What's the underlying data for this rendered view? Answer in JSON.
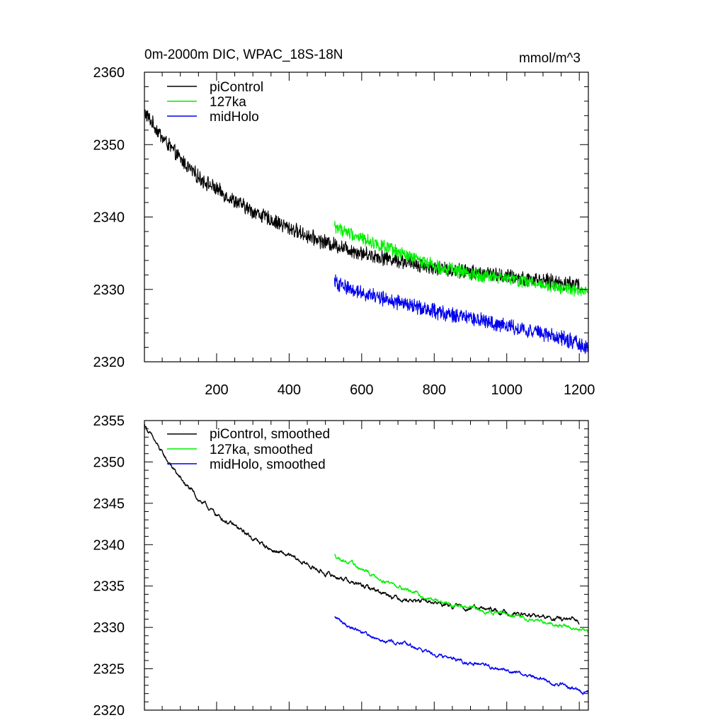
{
  "figure": {
    "title": "0m-2000m DIC, WPAC_18S-18N",
    "units": "mmol/m^3"
  },
  "chart_data": [
    {
      "type": "line",
      "title": "0m-2000m DIC, WPAC_18S-18N",
      "units_label": "mmol/m^3",
      "xlabel": "",
      "ylabel": "",
      "xlim": [
        1,
        1225
      ],
      "ylim": [
        2320,
        2360
      ],
      "x_ticks": [
        200,
        400,
        600,
        800,
        1000,
        1200
      ],
      "x_tick_labels": [
        "200",
        "400",
        "600",
        "800",
        "1000",
        "1200"
      ],
      "y_ticks": [
        2320,
        2330,
        2340,
        2350,
        2360
      ],
      "y_tick_labels": [
        "2320",
        "2330",
        "2340",
        "2350",
        "2360"
      ],
      "legend": "top-left",
      "grid": false,
      "series": [
        {
          "name": "piControl",
          "color": "#000000",
          "x": [
            1,
            50,
            100,
            150,
            200,
            250,
            300,
            350,
            400,
            450,
            500,
            550,
            600,
            650,
            700,
            750,
            800,
            850,
            900,
            950,
            1000,
            1050,
            1100,
            1150,
            1200
          ],
          "values": [
            2354.5,
            2351.0,
            2348.0,
            2345.5,
            2343.8,
            2342.2,
            2340.8,
            2339.6,
            2338.5,
            2337.4,
            2336.5,
            2335.8,
            2335.0,
            2334.5,
            2334.0,
            2333.5,
            2333.0,
            2332.7,
            2332.4,
            2332.1,
            2331.8,
            2331.5,
            2331.2,
            2330.9,
            2330.7
          ],
          "noise": 0.9
        },
        {
          "name": "127ka",
          "color": "#00ee00",
          "x": [
            525,
            575,
            625,
            675,
            725,
            775,
            825,
            875,
            925,
            975,
            1025,
            1075,
            1125,
            1175,
            1225
          ],
          "values": [
            2338.7,
            2337.6,
            2336.6,
            2335.6,
            2334.6,
            2333.8,
            2333.0,
            2332.4,
            2332.0,
            2331.7,
            2331.3,
            2330.9,
            2330.5,
            2330.0,
            2329.5
          ],
          "noise": 0.8
        },
        {
          "name": "midHolo",
          "color": "#0000ee",
          "x": [
            525,
            575,
            625,
            675,
            725,
            775,
            825,
            875,
            925,
            975,
            1025,
            1075,
            1125,
            1175,
            1225
          ],
          "values": [
            2331.0,
            2330.0,
            2329.2,
            2328.5,
            2327.9,
            2327.3,
            2326.7,
            2326.2,
            2325.7,
            2325.2,
            2324.7,
            2324.2,
            2323.6,
            2322.9,
            2322.0
          ],
          "noise": 0.9
        }
      ]
    },
    {
      "type": "line",
      "title": "",
      "xlabel": "",
      "ylabel": "",
      "xlim": [
        1,
        1225
      ],
      "ylim": [
        2320,
        2355
      ],
      "x_ticks": [
        200,
        400,
        600,
        800,
        1000,
        1200
      ],
      "x_tick_labels": [],
      "y_ticks": [
        2320,
        2325,
        2330,
        2335,
        2340,
        2345,
        2350,
        2355
      ],
      "y_tick_labels": [
        "2320",
        "2325",
        "2330",
        "2335",
        "2340",
        "2345",
        "2350",
        "2355"
      ],
      "legend": "top-left",
      "grid": false,
      "series": [
        {
          "name": "piControl, smoothed",
          "color": "#000000",
          "x": [
            1,
            50,
            100,
            150,
            200,
            250,
            300,
            350,
            400,
            450,
            500,
            550,
            600,
            650,
            700,
            750,
            800,
            850,
            900,
            950,
            1000,
            1050,
            1100,
            1150,
            1200
          ],
          "values": [
            2354.5,
            2351.0,
            2348.0,
            2345.5,
            2343.6,
            2342.2,
            2340.8,
            2339.4,
            2338.6,
            2337.6,
            2336.5,
            2335.9,
            2335.0,
            2334.4,
            2333.6,
            2333.2,
            2333.0,
            2332.6,
            2332.4,
            2332.1,
            2331.8,
            2331.5,
            2331.2,
            2331.0,
            2330.7
          ],
          "noise": 0.35
        },
        {
          "name": "127ka, smoothed",
          "color": "#00ee00",
          "x": [
            525,
            575,
            625,
            675,
            725,
            775,
            825,
            875,
            925,
            975,
            1025,
            1075,
            1125,
            1175,
            1225
          ],
          "values": [
            2338.7,
            2337.6,
            2336.4,
            2335.5,
            2334.6,
            2333.6,
            2333.0,
            2332.5,
            2332.1,
            2331.8,
            2331.3,
            2331.0,
            2330.5,
            2330.0,
            2329.3
          ],
          "noise": 0.3
        },
        {
          "name": "midHolo, smoothed",
          "color": "#0000ee",
          "x": [
            525,
            575,
            625,
            675,
            725,
            775,
            825,
            875,
            925,
            975,
            1025,
            1075,
            1125,
            1175,
            1225
          ],
          "values": [
            2331.2,
            2330.0,
            2329.0,
            2328.4,
            2327.9,
            2327.2,
            2326.6,
            2326.0,
            2325.4,
            2325.0,
            2324.6,
            2324.0,
            2323.3,
            2322.8,
            2322.0
          ],
          "noise": 0.3
        }
      ]
    }
  ]
}
